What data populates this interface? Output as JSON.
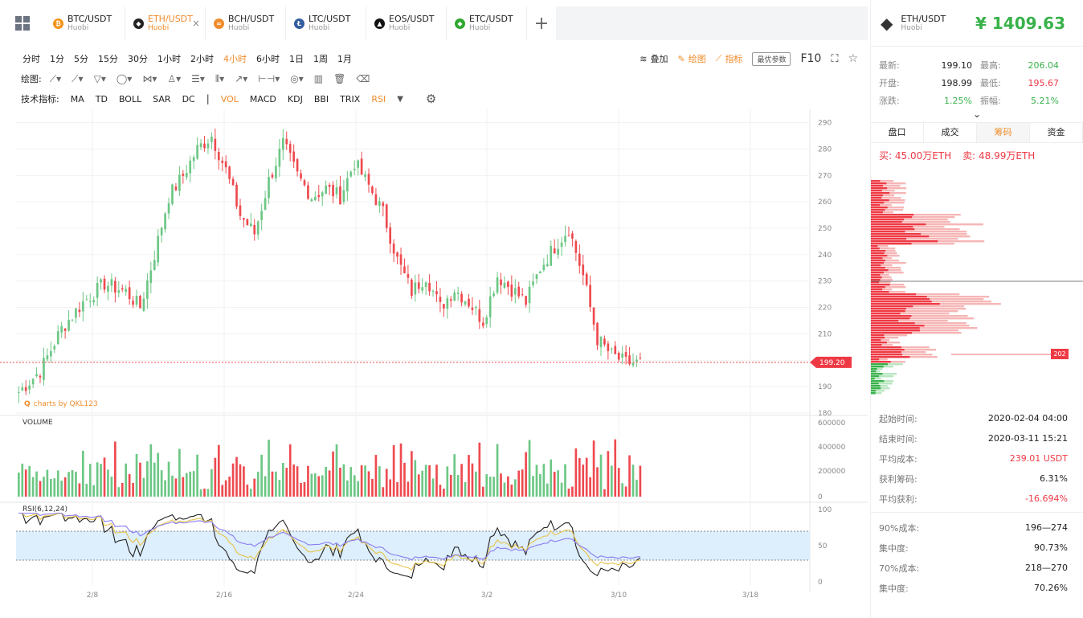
{
  "tabs": [
    {
      "symbol": "BTC/USDT",
      "exchange": "Huobi",
      "color": "#f7931a",
      "glyph": "₿",
      "active": false
    },
    {
      "symbol": "ETH/USDT",
      "exchange": "Huobi",
      "color": "#222222",
      "glyph": "◆",
      "active": true
    },
    {
      "symbol": "BCH/USDT",
      "exchange": "Huobi",
      "color": "#f08c2b",
      "glyph": "∞",
      "active": false
    },
    {
      "symbol": "LTC/USDT",
      "exchange": "Huobi",
      "color": "#345d9d",
      "glyph": "Ł",
      "active": false
    },
    {
      "symbol": "EOS/USDT",
      "exchange": "Huobi",
      "color": "#111111",
      "glyph": "▲",
      "active": false
    },
    {
      "symbol": "ETC/USDT",
      "exchange": "Huobi",
      "color": "#2fa82f",
      "glyph": "◆",
      "active": false
    }
  ],
  "tab_close": "×",
  "tab_add": "+",
  "periods": [
    "分时",
    "1分",
    "5分",
    "15分",
    "30分",
    "1小时",
    "2小时",
    "4小时",
    "6小时",
    "1日",
    "1周",
    "1月"
  ],
  "active_period": "4小时",
  "toolbar_right": {
    "overlay": "叠加",
    "draw": "绘图",
    "indicator": "指标",
    "best_params": "最优参数",
    "f10": "F10"
  },
  "draw_label": "绘图:",
  "indicator_label": "技术指标:",
  "indicators": [
    "MA",
    "TD",
    "BOLL",
    "SAR",
    "DC",
    "VOL",
    "MACD",
    "KDJ",
    "BBI",
    "TRIX",
    "RSI"
  ],
  "active_indicators": [
    "VOL",
    "RSI"
  ],
  "sep": "|",
  "watermark": "charts by QKL123",
  "current_price_tag": "199.20",
  "volume_label": "VOLUME",
  "rsi_label": "RSI(6,12,24)",
  "chart_data": {
    "type": "candlestick",
    "price_axis": [
      290,
      280,
      270,
      260,
      250,
      240,
      230,
      220,
      210,
      200,
      190,
      180
    ],
    "price_range": [
      180,
      292
    ],
    "volume_axis": [
      "600000",
      "400000",
      "200000",
      "0"
    ],
    "volume_range": [
      0,
      600000
    ],
    "rsi_axis": [
      "100",
      "50",
      "0"
    ],
    "rsi_band": [
      30,
      70
    ],
    "x_ticks": [
      "2/8",
      "2/16",
      "2/24",
      "3/2",
      "3/10",
      "3/18"
    ],
    "close_anchors": [
      [
        0,
        188
      ],
      [
        6,
        196
      ],
      [
        12,
        212
      ],
      [
        18,
        222
      ],
      [
        24,
        229
      ],
      [
        30,
        226
      ],
      [
        34,
        220
      ],
      [
        38,
        240
      ],
      [
        42,
        262
      ],
      [
        46,
        270
      ],
      [
        50,
        280
      ],
      [
        54,
        285
      ],
      [
        58,
        272
      ],
      [
        62,
        255
      ],
      [
        66,
        248
      ],
      [
        70,
        268
      ],
      [
        74,
        282
      ],
      [
        78,
        270
      ],
      [
        82,
        262
      ],
      [
        86,
        265
      ],
      [
        90,
        262
      ],
      [
        94,
        275
      ],
      [
        98,
        266
      ],
      [
        102,
        256
      ],
      [
        106,
        238
      ],
      [
        110,
        226
      ],
      [
        114,
        232
      ],
      [
        118,
        220
      ],
      [
        122,
        227
      ],
      [
        126,
        222
      ],
      [
        130,
        215
      ],
      [
        134,
        232
      ],
      [
        138,
        227
      ],
      [
        142,
        222
      ],
      [
        146,
        235
      ],
      [
        150,
        243
      ],
      [
        154,
        250
      ],
      [
        158,
        232
      ],
      [
        162,
        208
      ],
      [
        166,
        202
      ],
      [
        170,
        199
      ],
      [
        174,
        199
      ]
    ]
  },
  "right": {
    "symbol": "ETH/USDT",
    "exchange": "Huobi",
    "price": "¥ 1409.63",
    "stats": [
      {
        "k": "最新:",
        "v": "199.10",
        "k2": "最高:",
        "v2": "206.04",
        "v2c": "green",
        "vc": ""
      },
      {
        "k": "开盘:",
        "v": "198.99",
        "k2": "最低:",
        "v2": "195.67",
        "v2c": "red",
        "vc": ""
      },
      {
        "k": "涨跌:",
        "v": "1.25%",
        "k2": "振幅:",
        "v2": "5.21%",
        "v2c": "green",
        "vc": "green"
      }
    ],
    "chevron": "⌄",
    "tabs": [
      "盘口",
      "成交",
      "筹码",
      "资金"
    ],
    "active_tab": "筹码",
    "buy": "买: 45.00万ETH",
    "sell": "卖: 48.99万ETH",
    "chip_marker": "202",
    "info1": [
      {
        "k": "起始时间:",
        "v": "2020-02-04 04:00",
        "c": ""
      },
      {
        "k": "结束时间:",
        "v": "2020-03-11 15:21",
        "c": ""
      },
      {
        "k": "平均成本:",
        "v": "239.01 USDT",
        "c": "red"
      },
      {
        "k": "获利筹码:",
        "v": "6.31%",
        "c": ""
      },
      {
        "k": "平均获利:",
        "v": "-16.694%",
        "c": "red"
      }
    ],
    "info2": [
      {
        "k": "90%成本:",
        "v": "196—274"
      },
      {
        "k": "集中度:",
        "v": "90.73%"
      },
      {
        "k": "70%成本:",
        "v": "218—270"
      },
      {
        "k": "集中度:",
        "v": "70.26%"
      }
    ]
  }
}
